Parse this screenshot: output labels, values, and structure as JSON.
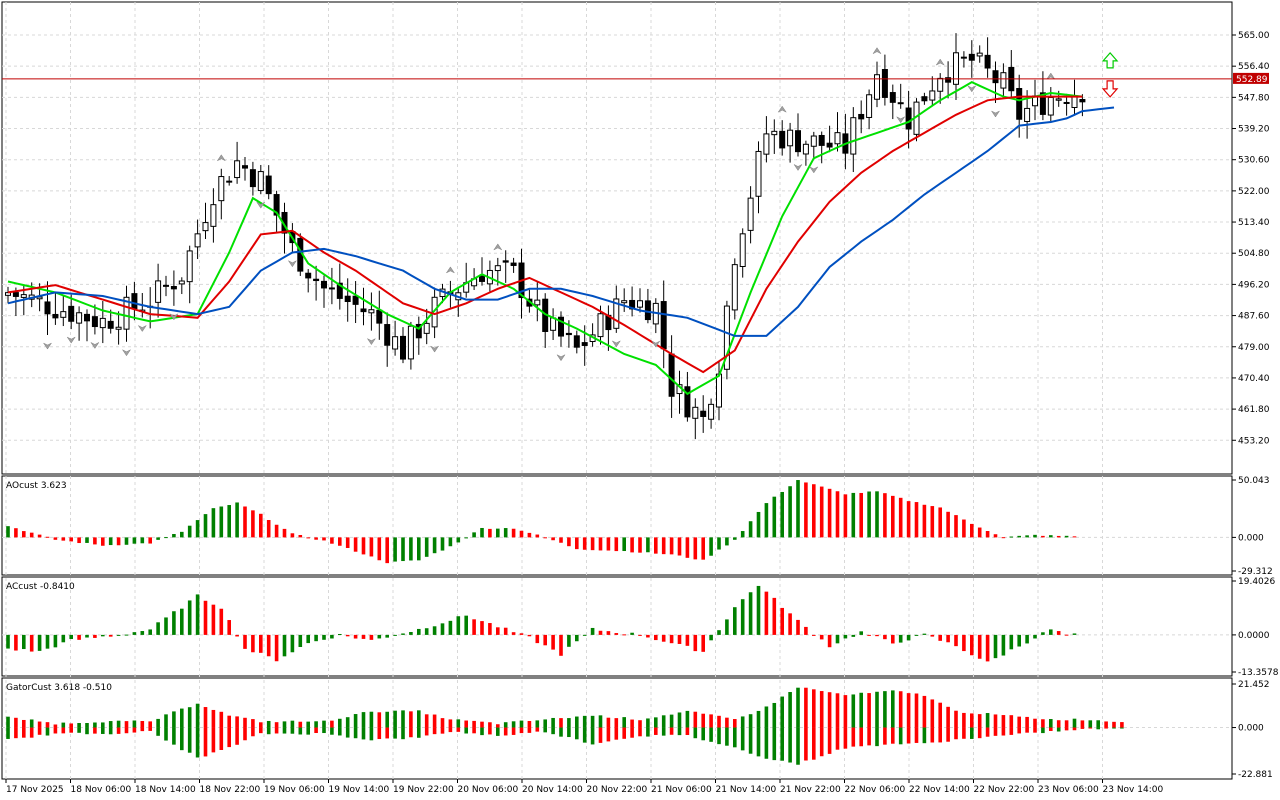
{
  "chart_data": {
    "type": "candlestick",
    "main": {
      "current_price_label": "552.89",
      "current_price": 552.89,
      "ylim": [
        445.0,
        573.0
      ],
      "y_ticks": [
        "565.00",
        "556.40",
        "547.80",
        "539.20",
        "530.60",
        "522.00",
        "513.40",
        "504.80",
        "496.20",
        "487.60",
        "479.00",
        "470.40",
        "461.80",
        "453.20"
      ],
      "y_tick_values": [
        565.0,
        556.4,
        547.8,
        539.2,
        530.6,
        522.0,
        513.4,
        504.8,
        496.2,
        487.6,
        479.0,
        470.4,
        461.8,
        453.2
      ],
      "candle_count": 140,
      "anchors_close": [
        [
          0,
          494
        ],
        [
          6,
          490
        ],
        [
          12,
          486
        ],
        [
          18,
          492
        ],
        [
          22,
          499
        ],
        [
          26,
          522
        ],
        [
          29,
          530
        ],
        [
          32,
          525
        ],
        [
          36,
          506
        ],
        [
          40,
          495
        ],
        [
          46,
          488
        ],
        [
          50,
          478
        ],
        [
          54,
          490
        ],
        [
          58,
          497
        ],
        [
          60,
          500
        ],
        [
          64,
          499
        ],
        [
          68,
          485
        ],
        [
          72,
          478
        ],
        [
          78,
          492
        ],
        [
          82,
          490
        ],
        [
          84,
          468
        ],
        [
          88,
          459
        ],
        [
          90,
          475
        ],
        [
          92,
          505
        ],
        [
          96,
          538
        ],
        [
          100,
          536
        ],
        [
          106,
          534
        ],
        [
          110,
          555
        ],
        [
          114,
          542
        ],
        [
          118,
          555
        ],
        [
          122,
          558
        ],
        [
          126,
          551
        ],
        [
          128,
          543
        ],
        [
          132,
          548
        ],
        [
          136,
          550
        ],
        [
          140,
          550
        ]
      ],
      "series": [
        {
          "name": "green",
          "color": "#00e000",
          "anchors": [
            [
              0,
              497
            ],
            [
              6,
              494
            ],
            [
              12,
              489
            ],
            [
              18,
              486
            ],
            [
              24,
              488
            ],
            [
              28,
              505
            ],
            [
              31,
              520
            ],
            [
              34,
              516
            ],
            [
              38,
              502
            ],
            [
              42,
              496
            ],
            [
              48,
              488
            ],
            [
              52,
              484
            ],
            [
              56,
              494
            ],
            [
              60,
              499
            ],
            [
              64,
              495
            ],
            [
              68,
              488
            ],
            [
              72,
              484
            ],
            [
              78,
              477
            ],
            [
              82,
              474
            ],
            [
              86,
              466
            ],
            [
              90,
              471
            ],
            [
              94,
              494
            ],
            [
              98,
              515
            ],
            [
              102,
              531
            ],
            [
              106,
              535
            ],
            [
              110,
              538
            ],
            [
              114,
              541
            ],
            [
              118,
              547
            ],
            [
              122,
              552
            ],
            [
              126,
              548
            ],
            [
              128,
              547
            ],
            [
              132,
              549
            ],
            [
              136,
              548
            ]
          ]
        },
        {
          "name": "red",
          "color": "#e00000",
          "anchors": [
            [
              0,
              494
            ],
            [
              6,
              496
            ],
            [
              12,
              492
            ],
            [
              18,
              488
            ],
            [
              24,
              487
            ],
            [
              28,
              497
            ],
            [
              32,
              510
            ],
            [
              36,
              511
            ],
            [
              40,
              505
            ],
            [
              44,
              500
            ],
            [
              50,
              491
            ],
            [
              54,
              488
            ],
            [
              58,
              491
            ],
            [
              62,
              495
            ],
            [
              66,
              498
            ],
            [
              70,
              494
            ],
            [
              74,
              490
            ],
            [
              78,
              485
            ],
            [
              84,
              477
            ],
            [
              88,
              472
            ],
            [
              92,
              478
            ],
            [
              96,
              495
            ],
            [
              100,
              508
            ],
            [
              104,
              519
            ],
            [
              108,
              527
            ],
            [
              112,
              533
            ],
            [
              116,
              538
            ],
            [
              120,
              543
            ],
            [
              124,
              547
            ],
            [
              128,
              548
            ],
            [
              132,
              548
            ],
            [
              136,
              548
            ]
          ]
        },
        {
          "name": "blue",
          "color": "#0050c0",
          "anchors": [
            [
              0,
              491
            ],
            [
              6,
              494
            ],
            [
              12,
              493
            ],
            [
              18,
              490
            ],
            [
              24,
              488
            ],
            [
              28,
              490
            ],
            [
              32,
              500
            ],
            [
              36,
              505
            ],
            [
              40,
              506
            ],
            [
              44,
              504
            ],
            [
              50,
              500
            ],
            [
              54,
              495
            ],
            [
              58,
              492
            ],
            [
              62,
              492
            ],
            [
              66,
              495
            ],
            [
              70,
              495
            ],
            [
              74,
              493
            ],
            [
              80,
              489
            ],
            [
              86,
              487
            ],
            [
              92,
              482
            ],
            [
              96,
              482
            ],
            [
              100,
              490
            ],
            [
              104,
              501
            ],
            [
              108,
              508
            ],
            [
              112,
              514
            ],
            [
              116,
              521
            ],
            [
              120,
              527
            ],
            [
              124,
              533
            ],
            [
              128,
              540
            ],
            [
              132,
              541
            ],
            [
              134,
              542
            ],
            [
              136,
              544
            ],
            [
              140,
              545
            ]
          ]
        }
      ],
      "fractal_up_idx": [
        27,
        56,
        62,
        98,
        110,
        118,
        132
      ],
      "fractal_down_idx": [
        5,
        8,
        11,
        15,
        17,
        21,
        32,
        36,
        46,
        54,
        70,
        77,
        82,
        100,
        102,
        113,
        122,
        125
      ],
      "signal_arrows": [
        {
          "type": "up",
          "color": "#00cc00"
        },
        {
          "type": "down",
          "color": "#e00000"
        }
      ]
    },
    "panels": [
      {
        "name": "AOcust",
        "label": "AOcust 3.623",
        "type": "histogram",
        "ylim": [
          -29.312,
          50.043
        ],
        "y_ticks": [
          "50.043",
          "0.000",
          "-29.312"
        ],
        "y_tick_values": [
          50.043,
          0.0,
          -29.312
        ],
        "bar_count": 136,
        "anchors": [
          [
            0,
            10
          ],
          [
            6,
            -2
          ],
          [
            12,
            -7
          ],
          [
            18,
            -5
          ],
          [
            22,
            5
          ],
          [
            26,
            25
          ],
          [
            29,
            30
          ],
          [
            32,
            20
          ],
          [
            36,
            3
          ],
          [
            40,
            -3
          ],
          [
            44,
            -12
          ],
          [
            48,
            -22
          ],
          [
            52,
            -20
          ],
          [
            56,
            -8
          ],
          [
            60,
            8
          ],
          [
            64,
            8
          ],
          [
            68,
            0
          ],
          [
            72,
            -10
          ],
          [
            78,
            -12
          ],
          [
            84,
            -15
          ],
          [
            88,
            -20
          ],
          [
            92,
            -2
          ],
          [
            96,
            30
          ],
          [
            100,
            50
          ],
          [
            106,
            38
          ],
          [
            110,
            40
          ],
          [
            114,
            32
          ],
          [
            118,
            26
          ],
          [
            122,
            12
          ],
          [
            126,
            0
          ],
          [
            130,
            2
          ],
          [
            134,
            1
          ]
        ]
      },
      {
        "name": "ACcust",
        "label": "ACcust -0.8410",
        "type": "histogram",
        "ylim": [
          -13.3578,
          19.4026
        ],
        "y_ticks": [
          "19.4026",
          "0.0000",
          "-13.3578"
        ],
        "y_tick_values": [
          19.4026,
          0.0,
          -13.3578
        ],
        "bar_count": 136,
        "anchors": [
          [
            0,
            -5
          ],
          [
            4,
            -6
          ],
          [
            8,
            -2
          ],
          [
            14,
            0
          ],
          [
            18,
            2
          ],
          [
            24,
            14
          ],
          [
            27,
            10
          ],
          [
            30,
            -5
          ],
          [
            34,
            -9
          ],
          [
            38,
            -3
          ],
          [
            42,
            0
          ],
          [
            46,
            -2
          ],
          [
            52,
            2
          ],
          [
            58,
            7
          ],
          [
            62,
            3
          ],
          [
            66,
            -1
          ],
          [
            70,
            -7
          ],
          [
            74,
            2
          ],
          [
            80,
            0
          ],
          [
            84,
            -3
          ],
          [
            88,
            -6
          ],
          [
            92,
            10
          ],
          [
            95,
            18
          ],
          [
            100,
            5
          ],
          [
            104,
            -4
          ],
          [
            108,
            1
          ],
          [
            112,
            -3
          ],
          [
            116,
            0
          ],
          [
            120,
            -4
          ],
          [
            124,
            -10
          ],
          [
            128,
            -4
          ],
          [
            132,
            2
          ],
          [
            134,
            0
          ]
        ]
      },
      {
        "name": "GatorCust",
        "label": "GatorCust 3.618 -0.510",
        "type": "gator",
        "ylim": [
          -22.881,
          21.452
        ],
        "y_ticks": [
          "21.452",
          "0.000",
          "-22.881"
        ],
        "y_tick_values": [
          21.452,
          0.0,
          -22.881
        ],
        "bar_count": 142,
        "upper_anchors": [
          [
            0,
            5
          ],
          [
            6,
            2
          ],
          [
            12,
            3
          ],
          [
            18,
            3
          ],
          [
            24,
            12
          ],
          [
            28,
            6
          ],
          [
            32,
            3
          ],
          [
            40,
            3
          ],
          [
            46,
            8
          ],
          [
            52,
            8
          ],
          [
            56,
            4
          ],
          [
            62,
            2
          ],
          [
            68,
            4
          ],
          [
            74,
            6
          ],
          [
            80,
            4
          ],
          [
            86,
            8
          ],
          [
            92,
            4
          ],
          [
            96,
            10
          ],
          [
            100,
            20
          ],
          [
            106,
            16
          ],
          [
            112,
            18
          ],
          [
            116,
            16
          ],
          [
            120,
            8
          ],
          [
            126,
            6
          ],
          [
            132,
            4
          ],
          [
            136,
            4
          ],
          [
            140,
            3
          ]
        ],
        "lower_anchors": [
          [
            0,
            -6
          ],
          [
            6,
            -3
          ],
          [
            12,
            -3
          ],
          [
            18,
            -2
          ],
          [
            24,
            -15
          ],
          [
            28,
            -10
          ],
          [
            32,
            -3
          ],
          [
            40,
            -3
          ],
          [
            46,
            -6
          ],
          [
            52,
            -5
          ],
          [
            56,
            -2
          ],
          [
            62,
            -4
          ],
          [
            68,
            -2
          ],
          [
            74,
            -8
          ],
          [
            80,
            -4
          ],
          [
            86,
            -4
          ],
          [
            92,
            -10
          ],
          [
            96,
            -15
          ],
          [
            100,
            -18
          ],
          [
            106,
            -10
          ],
          [
            112,
            -8
          ],
          [
            116,
            -8
          ],
          [
            120,
            -6
          ],
          [
            126,
            -4
          ],
          [
            132,
            -2
          ],
          [
            136,
            -1
          ],
          [
            140,
            0
          ]
        ]
      }
    ],
    "x_ticks": [
      "17 Nov 2025",
      "18 Nov 06:00",
      "18 Nov 14:00",
      "18 Nov 22:00",
      "19 Nov 06:00",
      "19 Nov 14:00",
      "19 Nov 22:00",
      "20 Nov 06:00",
      "20 Nov 14:00",
      "20 Nov 22:00",
      "21 Nov 06:00",
      "21 Nov 14:00",
      "21 Nov 22:00",
      "22 Nov 06:00",
      "22 Nov 14:00",
      "22 Nov 22:00",
      "23 Nov 06:00",
      "23 Nov 14:00"
    ],
    "colors": {
      "up_candle": "#ffffff",
      "down_candle": "#000000",
      "hist_up": "#008000",
      "hist_down": "#ff0000",
      "price_line": "#c00000",
      "grid": "#d8d8d8",
      "fractal": "#a0a0a0"
    }
  }
}
